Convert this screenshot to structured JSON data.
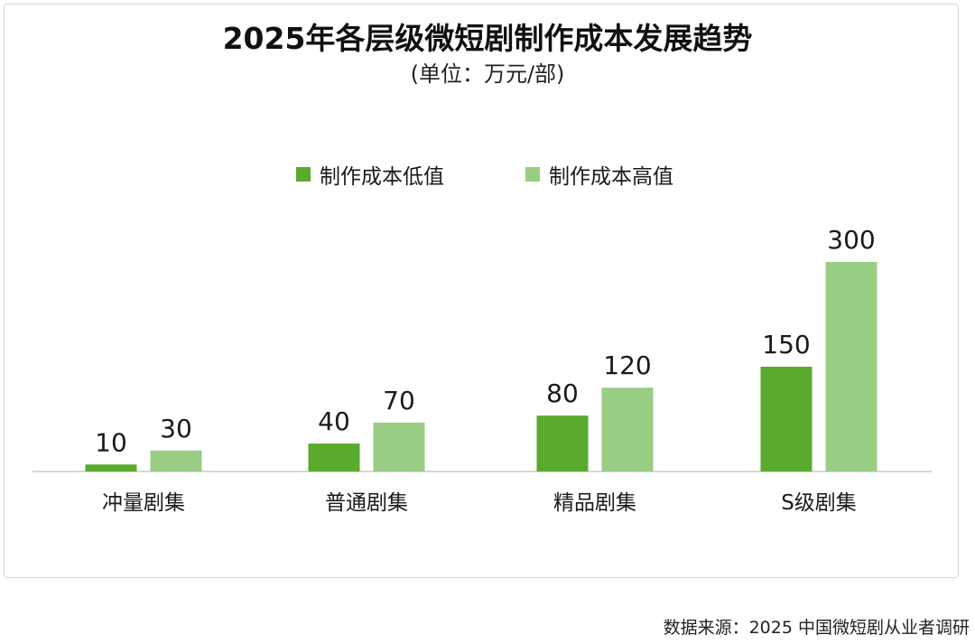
{
  "chart_data": {
    "type": "bar",
    "title": "2025年各层级微短剧制作成本发展趋势",
    "subtitle": "(单位：万元/部)",
    "categories": [
      "冲量剧集",
      "普通剧集",
      "精品剧集",
      "S级剧集"
    ],
    "series": [
      {
        "name": "制作成本低值",
        "values": [
          10,
          40,
          80,
          150
        ],
        "color": "#5aaa2e"
      },
      {
        "name": "制作成本高值",
        "values": [
          30,
          70,
          120,
          300
        ],
        "color": "#9acd84"
      }
    ],
    "xlabel": "",
    "ylabel": "",
    "ylim": [
      0,
      300
    ],
    "legend_position": "top-center",
    "grid": false
  },
  "source": "数据来源：2025 中国微短剧从业者调研"
}
